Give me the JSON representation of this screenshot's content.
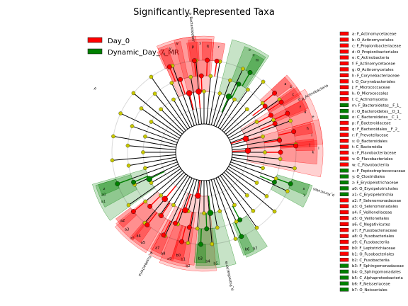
{
  "chart_data": {
    "type": "cladogram",
    "title": "Significantly Represented Taxa",
    "colors": {
      "Day_0": "#ff0000",
      "Dynamic_Day_7_MR": "#008000",
      "neutral": "#c8c800"
    },
    "legend": [
      {
        "name": "Day_0",
        "color": "#ff0000"
      },
      {
        "name": "Dynamic_Day_7_MR",
        "color": "#008000"
      }
    ],
    "taxa": [
      {
        "code": "a",
        "label": "a: F_Actinomycetaceae",
        "group": "Day_0",
        "angle": -40,
        "level": 5
      },
      {
        "code": "b",
        "label": "b: O_Actinomycetales",
        "group": "Day_0",
        "angle": -37,
        "level": 4
      },
      {
        "code": "c",
        "label": "c: F_Propionibacteriaceae",
        "group": "Day_0",
        "angle": -33,
        "level": 5
      },
      {
        "code": "d",
        "label": "d: O_Propionibacteriales",
        "group": "Day_0",
        "angle": -29,
        "level": 4
      },
      {
        "code": "e",
        "label": "e: C_Actinobacteria",
        "group": "Day_0",
        "angle": -18,
        "level": 2
      },
      {
        "code": "f",
        "label": "f: F_Actinomycetaceae",
        "group": "Day_0",
        "angle": -25,
        "level": 5
      },
      {
        "code": "g",
        "label": "g: O_Actinomycetales",
        "group": "Day_0",
        "angle": -22,
        "level": 4
      },
      {
        "code": "h",
        "label": "h: F_Corynebacteriaceae",
        "group": "Day_0",
        "angle": -13,
        "level": 5
      },
      {
        "code": "i",
        "label": "i: O_Corynebacteriales",
        "group": "Day_0",
        "angle": -9,
        "level": 4
      },
      {
        "code": "j",
        "label": "j: F_Micrococcaceae",
        "group": "Day_0",
        "angle": -4,
        "level": 5
      },
      {
        "code": "k",
        "label": "k: O_Micrococcales",
        "group": "Day_0",
        "angle": 0,
        "level": 4
      },
      {
        "code": "l",
        "label": "l: C_Actinomycetia",
        "group": "Day_0",
        "angle": -2,
        "level": 2
      },
      {
        "code": "m",
        "label": "m: F_Bacteroidetes__F_1_",
        "group": "Dynamic_Day_7_MR",
        "angle": -60,
        "level": 5
      },
      {
        "code": "n",
        "label": "n: O_Bacteroidetes__O_1_",
        "group": "Dynamic_Day_7_MR",
        "angle": -63,
        "level": 4
      },
      {
        "code": "o",
        "label": "o: C_Bacteroidetes__C_1_",
        "group": "Dynamic_Day_7_MR",
        "angle": -66,
        "level": 3
      },
      {
        "code": "p",
        "label": "p: F_Bacteroidaceae",
        "group": "Day_0",
        "angle": -96,
        "level": 5
      },
      {
        "code": "q",
        "label": "q: F_Bacteroidales__F_2_",
        "group": "Day_0",
        "angle": -88,
        "level": 5
      },
      {
        "code": "r",
        "label": "r: F_Prevotellaceae",
        "group": "Day_0",
        "angle": -82,
        "level": 5
      },
      {
        "code": "s",
        "label": "s: O_Bacteroidales",
        "group": "Day_0",
        "angle": -92,
        "level": 4
      },
      {
        "code": "t",
        "label": "t: C_Bacteroidia",
        "group": "Day_0",
        "angle": -95,
        "level": 3
      },
      {
        "code": "u",
        "label": "u: F_Flavobacteriaceae",
        "group": "Day_0",
        "angle": -112,
        "level": 5
      },
      {
        "code": "v",
        "label": "v: O_Flavobacteriales",
        "group": "Day_0",
        "angle": -108,
        "level": 4
      },
      {
        "code": "w",
        "label": "w: C_Flavobacteriia",
        "group": "Day_0",
        "angle": -104,
        "level": 3
      },
      {
        "code": "x",
        "label": "x: F_Peptostreptococcaceae",
        "group": "Dynamic_Day_7_MR",
        "angle": 20,
        "level": 5
      },
      {
        "code": "y",
        "label": "y: O_Clostridiales",
        "group": "Dynamic_Day_7_MR",
        "angle": 23,
        "level": 4
      },
      {
        "code": "z",
        "label": "z: F_Erysipelotrichaceae",
        "group": "Dynamic_Day_7_MR",
        "angle": 160,
        "level": 5
      },
      {
        "code": "a0",
        "label": "a0: O_Erysipelotrichales",
        "group": "Dynamic_Day_7_MR",
        "angle": 157,
        "level": 4
      },
      {
        "code": "a1",
        "label": "a1: C_Erysipelotrichia",
        "group": "Dynamic_Day_7_MR",
        "angle": 154,
        "level": 3
      },
      {
        "code": "a2",
        "label": "a2: F_Selenomonadaceae",
        "group": "Day_0",
        "angle": 140,
        "level": 5
      },
      {
        "code": "a3",
        "label": "a3: O_Selenomonadales",
        "group": "Day_0",
        "angle": 135,
        "level": 4
      },
      {
        "code": "a4",
        "label": "a4: F_Veillonellaceae",
        "group": "Day_0",
        "angle": 128,
        "level": 5
      },
      {
        "code": "a5",
        "label": "a5: O_Veillonellales",
        "group": "Day_0",
        "angle": 124,
        "level": 4
      },
      {
        "code": "a6",
        "label": "a6: C_Negativicutes",
        "group": "Day_0",
        "angle": 130,
        "level": 3
      },
      {
        "code": "a7",
        "label": "a7: F_Fusobacteriaceae",
        "group": "Day_0",
        "angle": 116,
        "level": 5
      },
      {
        "code": "a8",
        "label": "a8: O_Fusobacteriales",
        "group": "Day_0",
        "angle": 112,
        "level": 4
      },
      {
        "code": "a9",
        "label": "a9: C_Fusobacteriia",
        "group": "Day_0",
        "angle": 108,
        "level": 3
      },
      {
        "code": "b0",
        "label": "b0: F_Leptotrichiaceae",
        "group": "Day_0",
        "angle": 104,
        "level": 5
      },
      {
        "code": "b1",
        "label": "b1: O_Fusobacteriales",
        "group": "Day_0",
        "angle": 101,
        "level": 4
      },
      {
        "code": "b2",
        "label": "b2: C_Fusobacteriia",
        "group": "Day_0",
        "angle": 98,
        "level": 2
      },
      {
        "code": "b3",
        "label": "b3: F_Sphingomonadaceae",
        "group": "Dynamic_Day_7_MR",
        "angle": 92,
        "level": 5
      },
      {
        "code": "b4",
        "label": "b4: O_Sphingomonadales",
        "group": "Dynamic_Day_7_MR",
        "angle": 88,
        "level": 4
      },
      {
        "code": "b5",
        "label": "b5: C_Alphaproteobacteria",
        "group": "Dynamic_Day_7_MR",
        "angle": 84,
        "level": 3
      },
      {
        "code": "b6",
        "label": "b6: F_Neisseriaceae",
        "group": "Dynamic_Day_7_MR",
        "angle": 66,
        "level": 5
      },
      {
        "code": "b7",
        "label": "b7: O_Neisseriales",
        "group": "Dynamic_Day_7_MR",
        "angle": 62,
        "level": 4
      }
    ],
    "phylum_labels": [
      {
        "text": "p_Bacteroidetes",
        "angle": -96
      },
      {
        "text": "p_Actinobacteria",
        "angle": -28
      },
      {
        "text": "p_Firmicutes",
        "angle": 18
      },
      {
        "text": "p_Proteobacteria",
        "angle": 78
      },
      {
        "text": "p_Fusobacteria",
        "angle": 118
      },
      {
        "text": "p",
        "angle": -150
      }
    ]
  }
}
